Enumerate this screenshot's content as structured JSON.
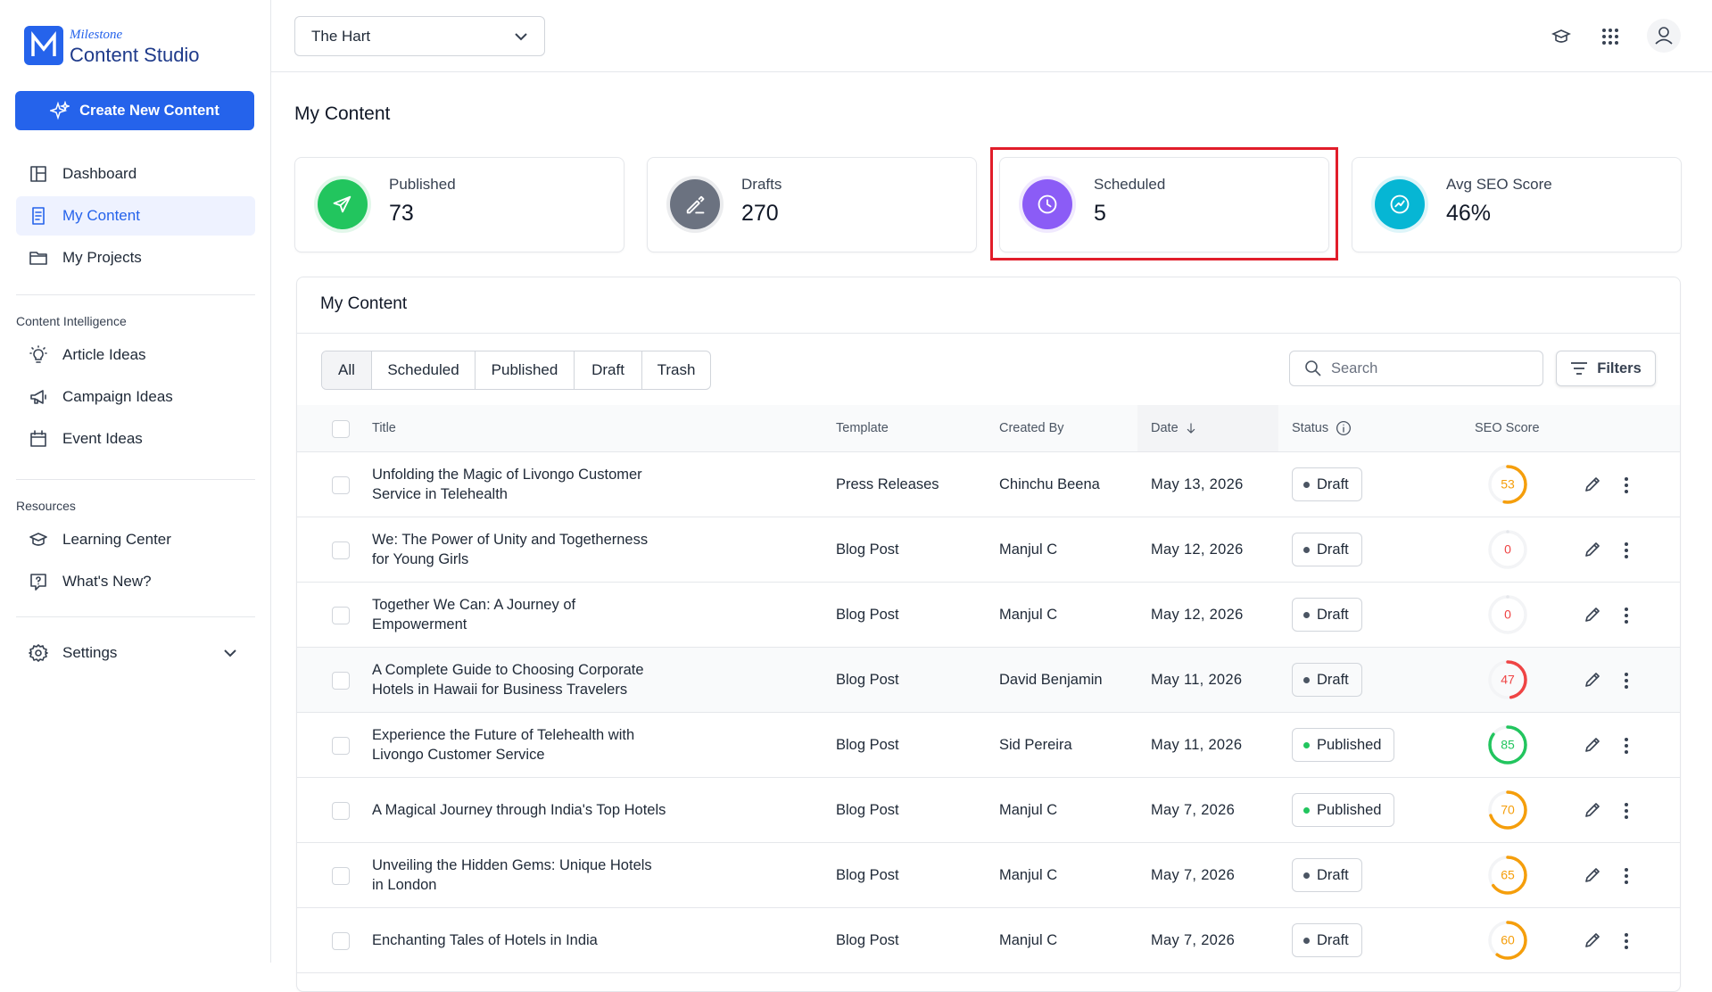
{
  "brand": {
    "top": "Milestone",
    "name": "Content Studio"
  },
  "create_button": "Create New Content",
  "nav": [
    "Dashboard",
    "My Content",
    "My Projects"
  ],
  "sections": [
    {
      "title": "Content Intelligence",
      "items": [
        "Article Ideas",
        "Campaign Ideas",
        "Event Ideas"
      ]
    },
    {
      "title": "Resources",
      "items": [
        "Learning Center",
        "What's New?"
      ]
    }
  ],
  "settings": "Settings",
  "project_selector": "The Hart",
  "page_title": "My Content",
  "stats": [
    {
      "label": "Published",
      "value": "73"
    },
    {
      "label": "Drafts",
      "value": "270"
    },
    {
      "label": "Scheduled",
      "value": "5"
    },
    {
      "label": "Avg SEO Score",
      "value": "46%"
    }
  ],
  "table": {
    "title": "My Content",
    "tabs": [
      "All",
      "Scheduled",
      "Published",
      "Draft",
      "Trash"
    ],
    "search_placeholder": "Search",
    "filters": "Filters",
    "columns": [
      "Title",
      "Template",
      "Created By",
      "Date",
      "Status",
      "SEO Score"
    ],
    "rows": [
      {
        "title": "Unfolding the Magic of Livongo Customer Service in Telehealth",
        "template": "Press Releases",
        "created_by": "Chinchu Beena",
        "date": "May 13, 2026",
        "status": "Draft",
        "seo": 53
      },
      {
        "title": "We: The Power of Unity and Togetherness for Young Girls",
        "template": "Blog Post",
        "created_by": "Manjul C",
        "date": "May 12, 2026",
        "status": "Draft",
        "seo": 0
      },
      {
        "title": "Together We Can: A Journey of Empowerment",
        "template": "Blog Post",
        "created_by": "Manjul C",
        "date": "May 12, 2026",
        "status": "Draft",
        "seo": 0
      },
      {
        "title": "A Complete Guide to Choosing Corporate Hotels in Hawaii for Business Travelers",
        "template": "Blog Post",
        "created_by": "David Benjamin",
        "date": "May 11, 2026",
        "status": "Draft",
        "seo": 47
      },
      {
        "title": "Experience the Future of Telehealth with Livongo Customer Service",
        "template": "Blog Post",
        "created_by": "Sid Pereira",
        "date": "May 11, 2026",
        "status": "Published",
        "seo": 85
      },
      {
        "title": "A Magical Journey through India's Top Hotels",
        "template": "Blog Post",
        "created_by": "Manjul C",
        "date": "May 7, 2026",
        "status": "Published",
        "seo": 70
      },
      {
        "title": "Unveiling the Hidden Gems: Unique Hotels in London",
        "template": "Blog Post",
        "created_by": "Manjul C",
        "date": "May 7, 2026",
        "status": "Draft",
        "seo": 65
      },
      {
        "title": "Enchanting Tales of Hotels in India",
        "template": "Blog Post",
        "created_by": "Manjul C",
        "date": "May 7, 2026",
        "status": "Draft",
        "seo": 60
      }
    ]
  }
}
